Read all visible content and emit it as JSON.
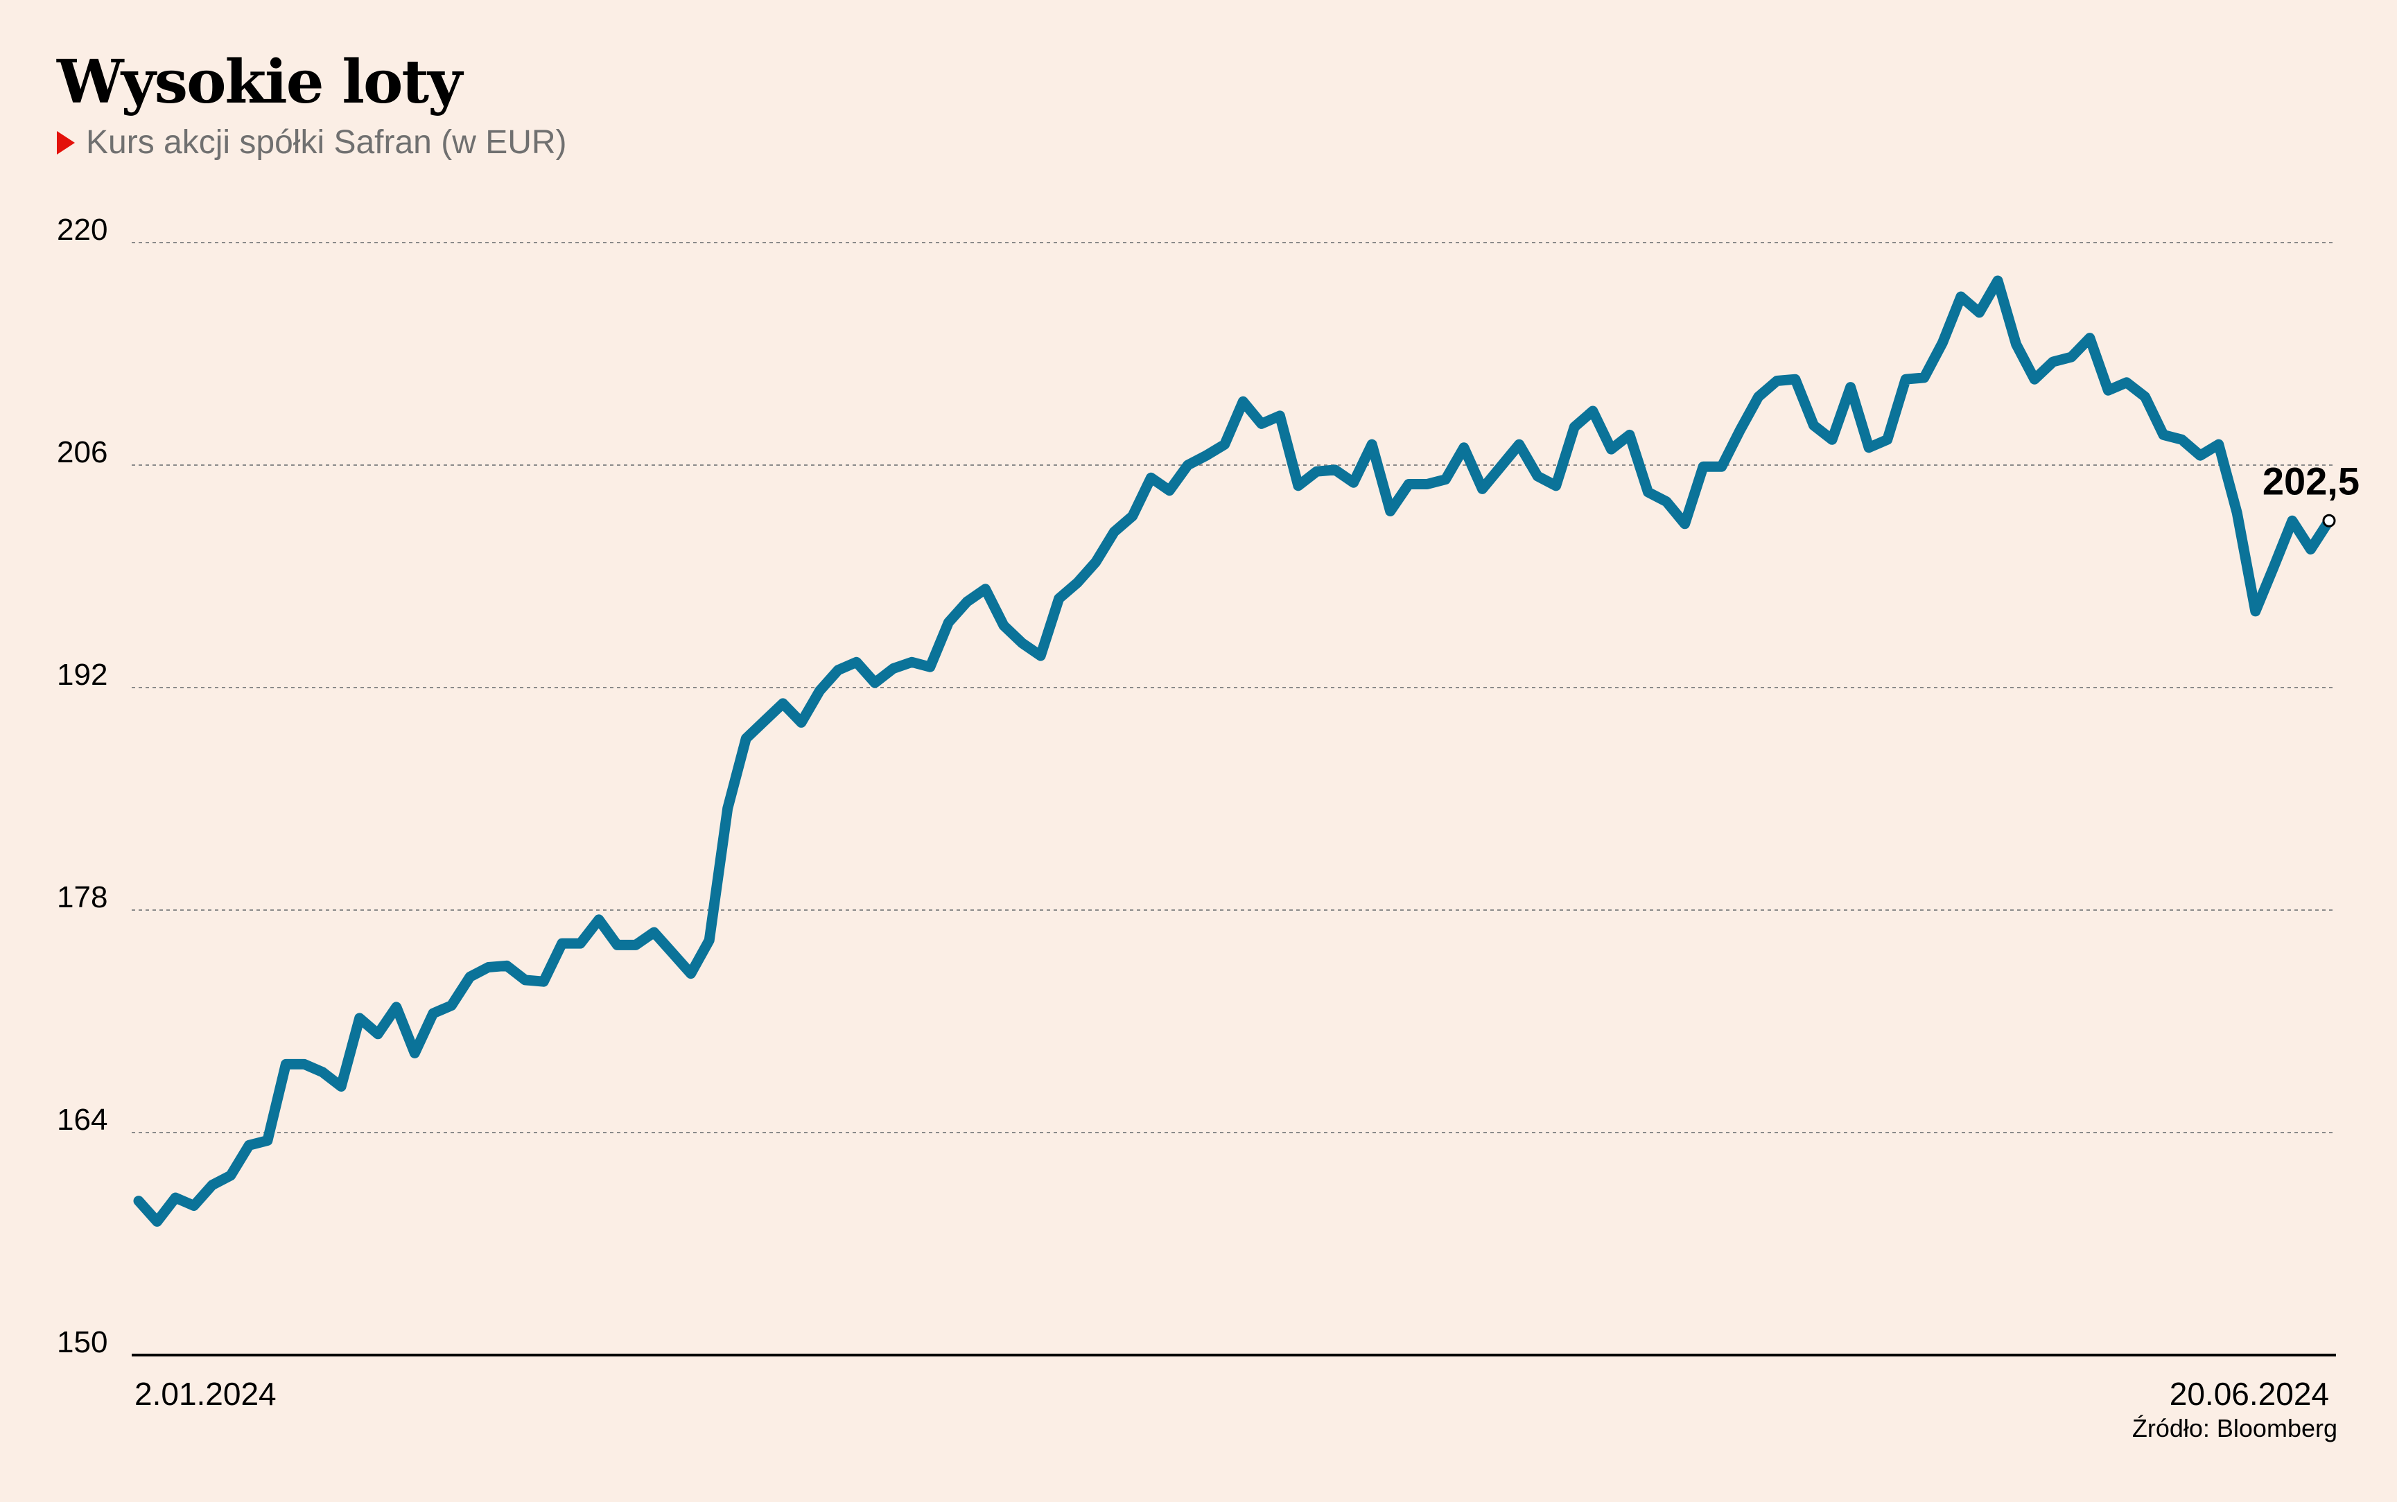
{
  "title": "Wysokie loty",
  "subtitle": "Kurs akcji spółki Safran (w EUR)",
  "source": "Źródło: Bloomberg",
  "colors": {
    "line": "#0b7399",
    "background": "#fbeee5",
    "marker": "#e3120b",
    "grid": "#8a8a8a"
  },
  "chart_data": {
    "type": "line",
    "title": "Wysokie loty",
    "subtitle": "Kurs akcji spółki Safran (w EUR)",
    "x_start_label": "2.01.2024",
    "x_end_label": "20.06.2024",
    "x_ticks": [
      "2.01.2024",
      "20.06.2024"
    ],
    "y_ticks": [
      150,
      164,
      178,
      192,
      206,
      220
    ],
    "ylim": [
      150,
      220
    ],
    "grid": true,
    "last_value_label": "202,5",
    "series": [
      {
        "values": [
          159.7,
          158.4,
          159.9,
          159.4,
          160.7,
          161.3,
          163.2,
          163.5,
          168.3,
          168.3,
          167.8,
          166.9,
          171.2,
          170.2,
          171.9,
          169.0,
          171.5,
          172.0,
          173.8,
          174.4,
          174.5,
          173.6,
          173.5,
          175.9,
          175.9,
          177.4,
          175.8,
          175.8,
          176.6,
          175.3,
          174.0,
          176.1,
          184.4,
          188.8,
          189.9,
          191.0,
          189.8,
          191.8,
          193.1,
          193.6,
          192.3,
          193.2,
          193.6,
          193.3,
          196.1,
          197.4,
          198.2,
          195.9,
          194.8,
          194.0,
          197.6,
          198.6,
          199.9,
          201.8,
          202.8,
          205.2,
          204.4,
          206.0,
          206.6,
          207.3,
          210.0,
          208.6,
          209.1,
          204.7,
          205.6,
          205.7,
          204.9,
          207.3,
          203.1,
          204.8,
          204.8,
          205.1,
          207.1,
          204.5,
          205.9,
          207.3,
          205.3,
          204.7,
          208.4,
          209.4,
          207.0,
          207.9,
          204.3,
          203.7,
          202.3,
          205.9,
          205.9,
          208.2,
          210.3,
          211.3,
          211.4,
          208.5,
          207.6,
          210.9,
          207.1,
          207.6,
          211.4,
          211.5,
          213.7,
          216.6,
          215.6,
          217.6,
          213.6,
          211.4,
          212.5,
          212.8,
          214.0,
          210.7,
          211.2,
          210.3,
          207.9,
          207.6,
          206.6,
          207.3,
          203.0,
          196.8,
          199.6,
          202.5,
          200.7,
          202.5
        ]
      }
    ]
  }
}
